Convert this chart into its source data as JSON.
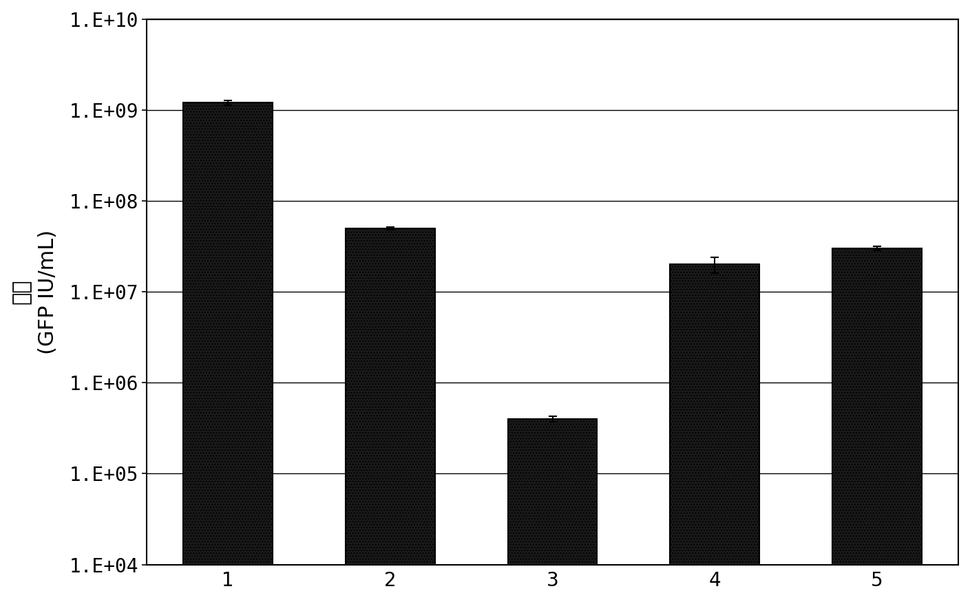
{
  "categories": [
    "1",
    "2",
    "3",
    "4",
    "5"
  ],
  "values": [
    1200000000.0,
    50000000.0,
    400000.0,
    20000000.0,
    30000000.0
  ],
  "errors": [
    80000000.0,
    2000000.0,
    25000.0,
    4000000.0,
    1500000.0
  ],
  "bar_color": "#1a1a1a",
  "bar_edge_color": "#000000",
  "bar_width": 0.55,
  "ylabel_top": "滴度",
  "ylabel_bottom": "(GFP IU/mL)",
  "ytick_labels": [
    "1.E+04",
    "1.E+05",
    "1.E+06",
    "1.E+07",
    "1.E+08",
    "1.E+09",
    "1.E+10"
  ],
  "ytick_values": [
    10000.0,
    100000.0,
    1000000.0,
    10000000.0,
    100000000.0,
    1000000000.0,
    10000000000.0
  ],
  "background_color": "#ffffff",
  "grid_color": "#000000",
  "label_fontsize": 22,
  "tick_fontsize": 20,
  "error_capsize": 4,
  "error_color": "#000000",
  "error_linewidth": 1.5,
  "hatch": "...."
}
